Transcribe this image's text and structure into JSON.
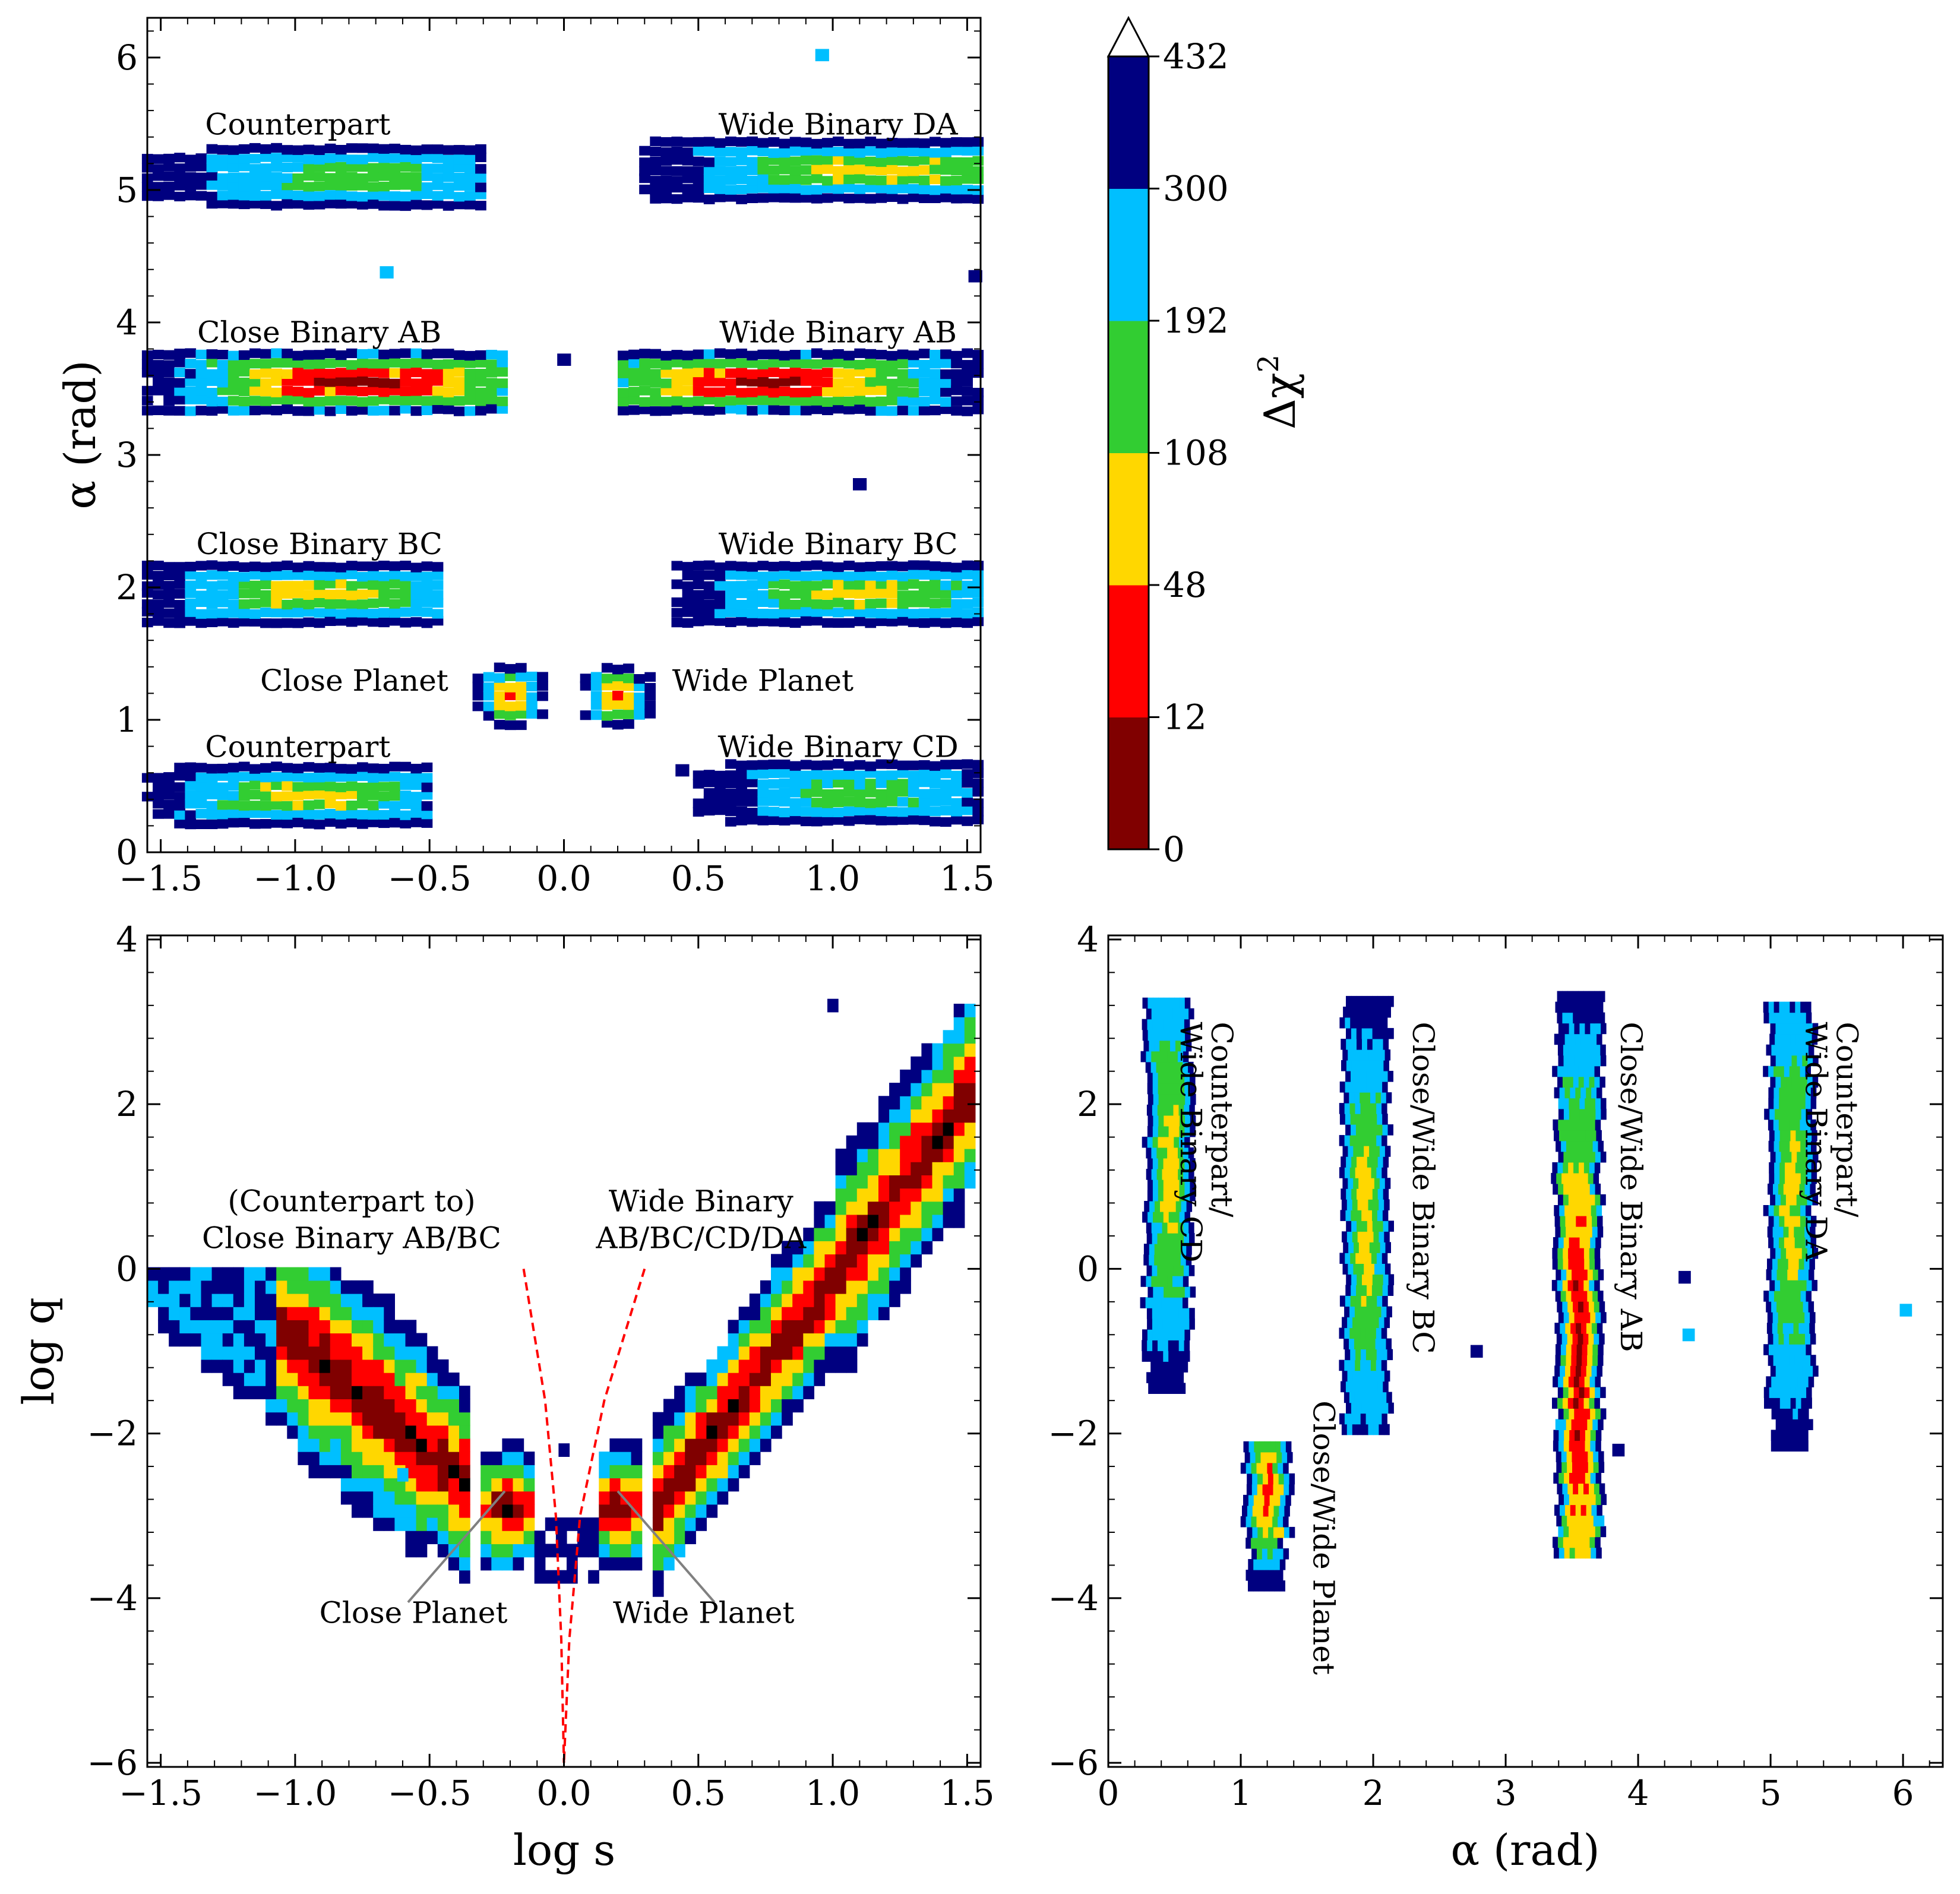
{
  "colors": {
    "bins": [
      "#800000",
      "#ff0000",
      "#ffd700",
      "#32cd32",
      "#00bfff",
      "#000080"
    ],
    "planet_boundary": "#ff0000",
    "pointer_line": "#808080"
  },
  "chart_data": [
    {
      "id": "alpha_vs_logs",
      "type": "heatmap",
      "xlabel": "",
      "ylabel": "α (rad)",
      "xlim": [
        -1.55,
        1.55
      ],
      "ylim": [
        0,
        6.3
      ],
      "xticks": [
        -1.5,
        -1.0,
        -0.5,
        0.0,
        0.5,
        1.0,
        1.5
      ],
      "xtick_labels": [
        "−1.5",
        "−1.0",
        "−0.5",
        "0.0",
        "0.5",
        "1.0",
        "1.5"
      ],
      "yticks": [
        0,
        1,
        2,
        3,
        4,
        5,
        6
      ],
      "ytick_labels": [
        "0",
        "1",
        "2",
        "3",
        "4",
        "5",
        "6"
      ],
      "annotations": [
        {
          "text": "Counterpart",
          "x": -0.99,
          "y": 5.42
        },
        {
          "text": "Wide Binary DA",
          "x": 1.02,
          "y": 5.42
        },
        {
          "text": "Close Binary AB",
          "x": -0.91,
          "y": 3.85
        },
        {
          "text": "Wide Binary AB",
          "x": 1.02,
          "y": 3.85
        },
        {
          "text": "Close Binary BC",
          "x": -0.91,
          "y": 2.25
        },
        {
          "text": "Wide Binary BC",
          "x": 1.02,
          "y": 2.25
        },
        {
          "text": "Close Planet",
          "x": -0.78,
          "y": 1.22
        },
        {
          "text": "Wide Planet",
          "x": 0.74,
          "y": 1.22
        },
        {
          "text": "Counterpart",
          "x": -0.99,
          "y": 0.72
        },
        {
          "text": "Wide Binary CD",
          "x": 1.02,
          "y": 0.72
        }
      ],
      "clusters": [
        {
          "x": [
            -1.55,
            -0.28
          ],
          "y": 5.1,
          "yw": 0.075,
          "center_x": -0.8,
          "peak_bin": 3
        },
        {
          "x": [
            0.3,
            1.55
          ],
          "y": 5.15,
          "yw": 0.09,
          "center_x": 1.15,
          "peak_bin": 2
        },
        {
          "x": [
            -1.55,
            -0.22
          ],
          "y": 3.55,
          "yw": 0.1,
          "center_x": -0.75,
          "peak_bin": 0
        },
        {
          "x": [
            0.22,
            1.55
          ],
          "y": 3.55,
          "yw": 0.1,
          "center_x": 0.75,
          "peak_bin": 0
        },
        {
          "x": [
            -1.55,
            -0.45
          ],
          "y": 1.95,
          "yw": 0.1,
          "center_x": -0.9,
          "peak_bin": 2
        },
        {
          "x": [
            0.42,
            1.55
          ],
          "y": 1.95,
          "yw": 0.1,
          "center_x": 1.1,
          "peak_bin": 2
        },
        {
          "x": [
            -0.32,
            -0.08
          ],
          "y": 1.18,
          "yw": 0.07,
          "center_x": -0.2,
          "peak_bin": 1
        },
        {
          "x": [
            0.08,
            0.32
          ],
          "y": 1.18,
          "yw": 0.07,
          "center_x": 0.2,
          "peak_bin": 1
        },
        {
          "x": [
            -1.55,
            -0.5
          ],
          "y": 0.43,
          "yw": 0.08,
          "center_x": -0.95,
          "peak_bin": 2
        },
        {
          "x": [
            0.5,
            1.55
          ],
          "y": 0.45,
          "yw": 0.08,
          "center_x": 1.1,
          "peak_bin": 3
        }
      ],
      "outliers": [
        {
          "x": 0.96,
          "y": 6.02,
          "bin": 4
        },
        {
          "x": -0.66,
          "y": 4.38,
          "bin": 4
        },
        {
          "x": 1.53,
          "y": 4.35,
          "bin": 5
        },
        {
          "x": 0.0,
          "y": 3.72,
          "bin": 5
        },
        {
          "x": 1.1,
          "y": 2.78,
          "bin": 5
        },
        {
          "x": 0.44,
          "y": 0.62,
          "bin": 5
        }
      ]
    },
    {
      "id": "logq_vs_logs",
      "type": "heatmap",
      "xlabel": "log s",
      "ylabel": "log q",
      "xlim": [
        -1.55,
        1.55
      ],
      "ylim": [
        -6.05,
        4.05
      ],
      "xticks": [
        -1.5,
        -1.0,
        -0.5,
        0.0,
        0.5,
        1.0,
        1.5
      ],
      "xtick_labels": [
        "−1.5",
        "−1.0",
        "−0.5",
        "0.0",
        "0.5",
        "1.0",
        "1.5"
      ],
      "yticks": [
        -6,
        -4,
        -2,
        0,
        2,
        4
      ],
      "ytick_labels": [
        "−6",
        "−4",
        "−2",
        "0",
        "2",
        "4"
      ],
      "annotations": [
        {
          "text": "(Counterpart to)",
          "x": -0.79,
          "y": 0.7
        },
        {
          "text": "Close Binary AB/BC",
          "x": -0.79,
          "y": 0.25
        },
        {
          "text": "Wide Binary",
          "x": 0.51,
          "y": 0.7
        },
        {
          "text": "AB/BC/CD/DA",
          "x": 0.51,
          "y": 0.25
        },
        {
          "text": "Close Planet",
          "x": -0.56,
          "y": -4.3
        },
        {
          "text": "Wide Planet",
          "x": 0.52,
          "y": -4.3
        }
      ],
      "pointer_lines": [
        {
          "x1": -0.58,
          "y1": -4.05,
          "x2": -0.22,
          "y2": -2.7
        },
        {
          "x1": 0.56,
          "y1": -4.05,
          "x2": 0.2,
          "y2": -2.7
        }
      ],
      "planet_boundaries": [
        {
          "x": [
            -0.15,
            -0.07,
            -0.03,
            -0.01,
            0.0
          ],
          "y": [
            0.0,
            -1.6,
            -3.0,
            -4.5,
            -6.0
          ]
        },
        {
          "x": [
            0.3,
            0.15,
            0.06,
            0.02,
            0.0
          ],
          "y": [
            0.0,
            -1.6,
            -3.0,
            -4.5,
            -6.0
          ]
        }
      ],
      "outliers": [
        {
          "x": 0.0,
          "y": -2.2,
          "bin": 5
        },
        {
          "x": -0.6,
          "y": -2.5,
          "bin": 4
        },
        {
          "x": 1.0,
          "y": 3.2,
          "bin": 5
        }
      ]
    },
    {
      "id": "logq_vs_alpha",
      "type": "heatmap",
      "xlabel": "α (rad)",
      "ylabel": "",
      "xlim": [
        0,
        6.3
      ],
      "ylim": [
        -6.05,
        4.05
      ],
      "xticks": [
        0,
        1,
        2,
        3,
        4,
        5,
        6
      ],
      "xtick_labels": [
        "0",
        "1",
        "2",
        "3",
        "4",
        "5",
        "6"
      ],
      "yticks": [
        -6,
        -4,
        -2,
        0,
        2,
        4
      ],
      "ytick_labels": [
        "−6",
        "−4",
        "−2",
        "0",
        "2",
        "4"
      ],
      "annotations": [
        {
          "lines": [
            "Counterpart/",
            "Wide Binary CD"
          ],
          "x": 0.78,
          "y": 3.0
        },
        {
          "lines": [
            "Close/Wide Binary BC"
          ],
          "x": 2.3,
          "y": 3.0
        },
        {
          "lines": [
            "Close/Wide Binary AB"
          ],
          "x": 3.87,
          "y": 3.0
        },
        {
          "lines": [
            "Counterpart/",
            "Wide Binary DA"
          ],
          "x": 5.5,
          "y": 3.0
        },
        {
          "lines": [
            "Close/Wide Planet"
          ],
          "x": 1.55,
          "y": -1.6
        }
      ],
      "clusters": [
        {
          "alpha": 0.45,
          "q": [
            -1.45,
            3.3
          ],
          "peak_q": 1.2,
          "peak_bin": 2,
          "w": 0.07
        },
        {
          "alpha": 1.95,
          "q": [
            -1.95,
            3.35
          ],
          "peak_q": 0.5,
          "peak_bin": 2,
          "w": 0.08
        },
        {
          "alpha": 3.55,
          "q": [
            -3.45,
            3.35
          ],
          "peak_q": -1.2,
          "peak_bin": 0,
          "w": 0.08
        },
        {
          "alpha": 5.15,
          "q": [
            -2.15,
            3.2
          ],
          "peak_q": 0.8,
          "peak_bin": 2,
          "w": 0.07
        },
        {
          "alpha": 1.2,
          "q": [
            -3.85,
            -2.1
          ],
          "peak_q": -2.7,
          "peak_bin": 1,
          "w": 0.06
        }
      ],
      "outliers": [
        {
          "x": 2.78,
          "y": -1.0,
          "bin": 5
        },
        {
          "x": 4.35,
          "y": -0.1,
          "bin": 5
        },
        {
          "x": 4.38,
          "y": -0.8,
          "bin": 4
        },
        {
          "x": 6.02,
          "y": -0.5,
          "bin": 4
        },
        {
          "x": 3.85,
          "y": -2.2,
          "bin": 5
        }
      ]
    }
  ],
  "colorbar": {
    "label": "Δχ²",
    "label_main": "Δχ",
    "label_sup": "2",
    "boundaries": [
      0,
      12,
      48,
      108,
      192,
      300,
      432
    ],
    "tick_labels": [
      "0",
      "12",
      "48",
      "108",
      "192",
      "300",
      "432"
    ],
    "extend": "max"
  }
}
